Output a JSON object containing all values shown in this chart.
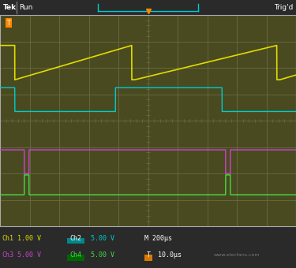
{
  "plot_bg": "#4a4a20",
  "grid_color": "#6a6a45",
  "border_color": "#888866",
  "top_bar_bg": "#2a2a2a",
  "footer_bg": "#1e1e1e",
  "top_bar_text": "Tek Run",
  "trig_text": "Trig'd",
  "ch1_color": "#dddd00",
  "ch2_color": "#00cccc",
  "ch3_color": "#cc44cc",
  "ch4_color": "#44dd44",
  "ch1_label": "Ch1",
  "ch2_label": "Ch2",
  "ch3_label": "Ch3",
  "ch4_label": "Ch4",
  "ch1_val": "1.00 V",
  "ch2_val": "5.00 V",
  "ch3_val": "5.00 V",
  "ch4_val": "5.00 V",
  "time_val": "M 200μs",
  "trig_val": "10.0μs",
  "fig_width": 3.75,
  "fig_height": 3.4,
  "dpi": 100
}
